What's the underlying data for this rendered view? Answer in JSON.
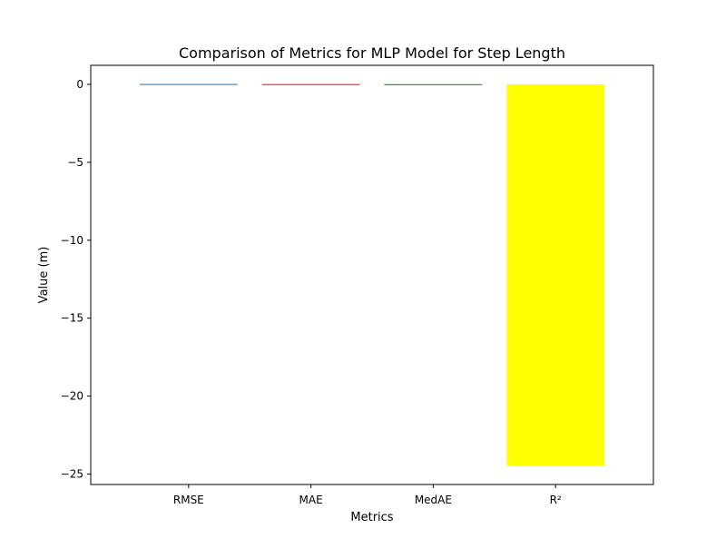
{
  "chart_data": {
    "type": "bar",
    "title": "Comparison of Metrics for MLP Model for Step Length",
    "xlabel": "Metrics",
    "ylabel": "Value (m)",
    "categories": [
      "RMSE",
      "MAE",
      "MedAE",
      "R²"
    ],
    "values": [
      0.02,
      0.015,
      0.01,
      -24.45
    ],
    "colors": [
      "#1f77b4",
      "#ff0000",
      "#008000",
      "#ffff00"
    ],
    "ylim": [
      -25.67,
      1.22
    ],
    "yticks": [
      0,
      -5,
      -10,
      -15,
      -20,
      -25
    ],
    "ytick_labels": [
      "0",
      "−5",
      "−10",
      "−15",
      "−20",
      "−25"
    ],
    "grid": false,
    "legend": "none"
  }
}
